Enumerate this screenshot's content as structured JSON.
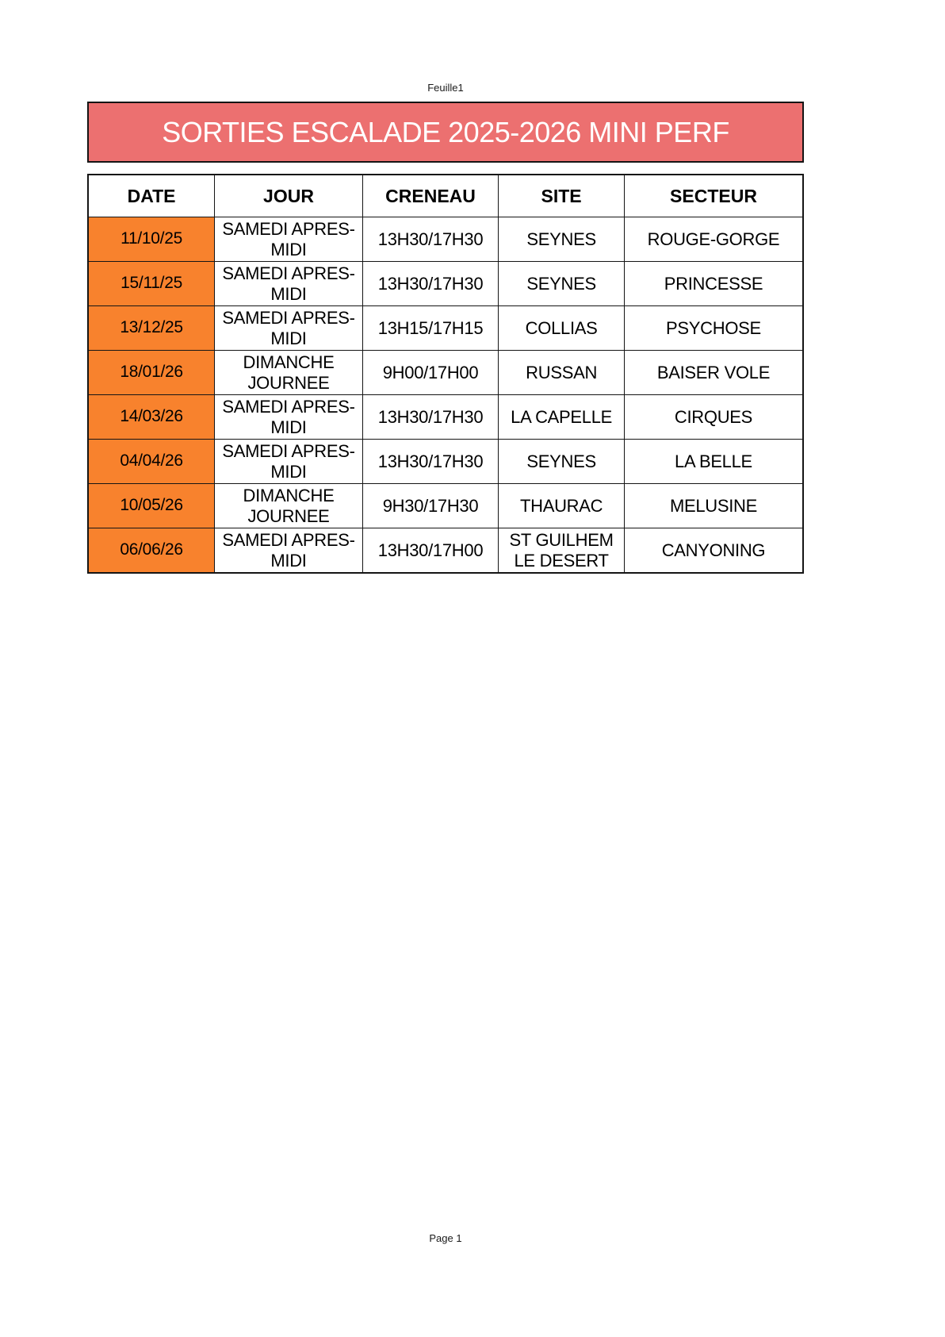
{
  "page": {
    "sheet_label": "Feuille1",
    "footer_label": "Page 1"
  },
  "title": {
    "text": "SORTIES ESCALADE 2025-2026 MINI PERF",
    "background": "#ec7070",
    "text_color": "#ffffff"
  },
  "table": {
    "headers": [
      "DATE",
      "JOUR",
      "CRENEAU",
      "SITE",
      "SECTEUR"
    ],
    "date_cell_color": "#f8822d",
    "column_keys": [
      "date",
      "jour",
      "creneau",
      "site",
      "secteur"
    ],
    "rows": [
      {
        "date": "11/10/25",
        "jour": "SAMEDI APRES-MIDI",
        "creneau": "13H30/17H30",
        "site": "SEYNES",
        "secteur": "ROUGE-GORGE"
      },
      {
        "date": "15/11/25",
        "jour": "SAMEDI APRES-MIDI",
        "creneau": "13H30/17H30",
        "site": "SEYNES",
        "secteur": "PRINCESSE"
      },
      {
        "date": "13/12/25",
        "jour": "SAMEDI APRES-MIDI",
        "creneau": "13H15/17H15",
        "site": "COLLIAS",
        "secteur": "PSYCHOSE"
      },
      {
        "date": "18/01/26",
        "jour": "DIMANCHE JOURNEE",
        "creneau": "9H00/17H00",
        "site": "RUSSAN",
        "secteur": "BAISER VOLE"
      },
      {
        "date": "14/03/26",
        "jour": "SAMEDI APRES-MIDI",
        "creneau": "13H30/17H30",
        "site": "LA CAPELLE",
        "secteur": "CIRQUES"
      },
      {
        "date": "04/04/26",
        "jour": "SAMEDI APRES-MIDI",
        "creneau": "13H30/17H30",
        "site": "SEYNES",
        "secteur": "LA BELLE"
      },
      {
        "date": "10/05/26",
        "jour": "DIMANCHE JOURNEE",
        "creneau": "9H30/17H30",
        "site": "THAURAC",
        "secteur": "MELUSINE"
      },
      {
        "date": "06/06/26",
        "jour": "SAMEDI APRES-MIDI",
        "creneau": "13H30/17H00",
        "site": "ST GUILHEM LE DESERT",
        "secteur": "CANYONING"
      }
    ]
  }
}
